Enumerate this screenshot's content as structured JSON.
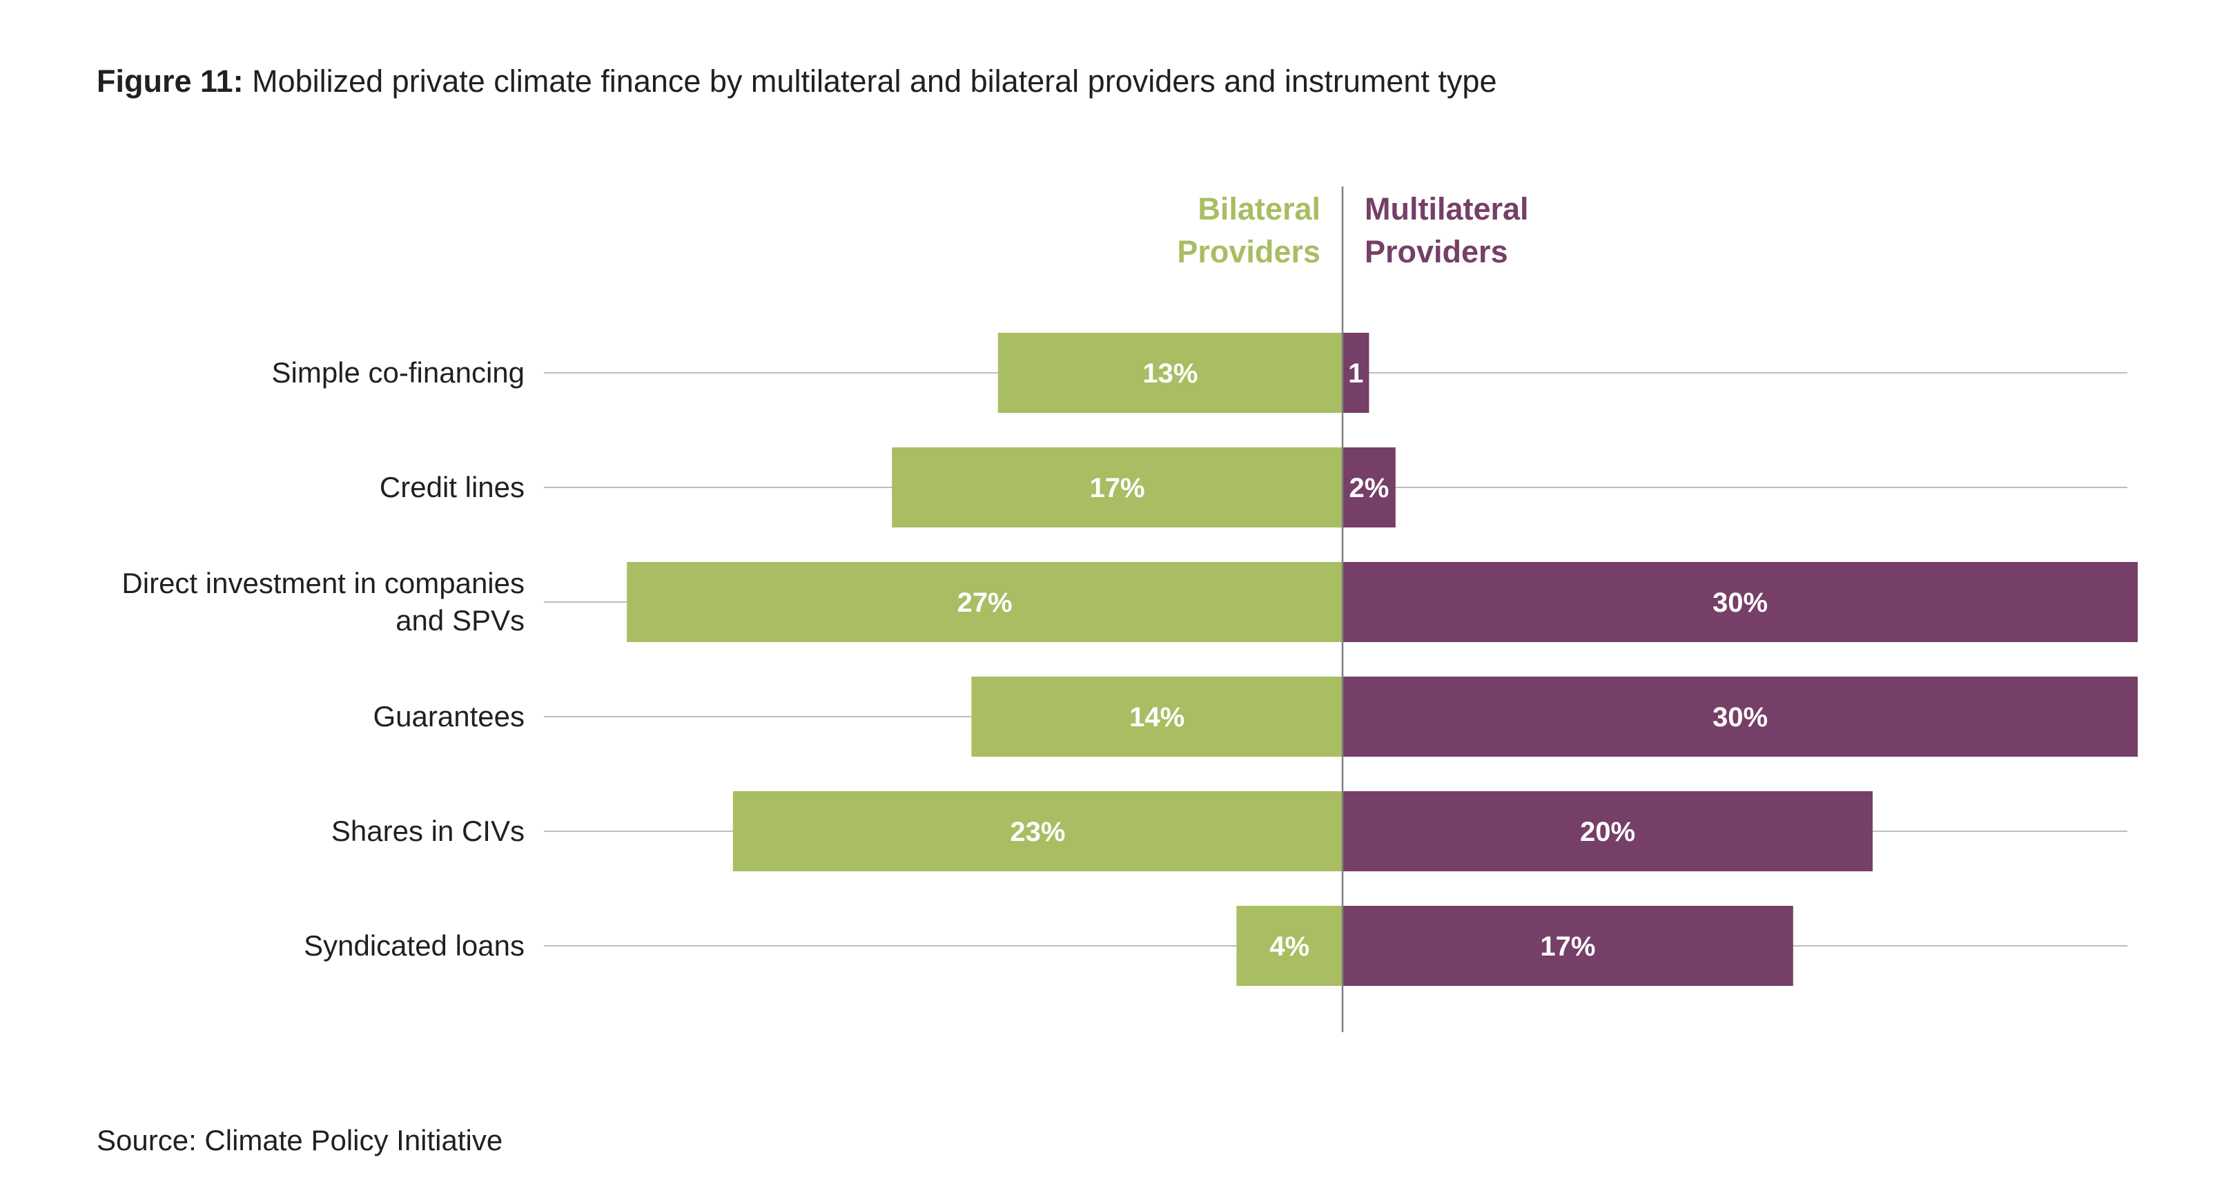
{
  "figure_label": "Figure 11:",
  "figure_title": "Mobilized private climate finance by multilateral and bilateral providers and instrument type",
  "source": "Source: Climate Policy Initiative",
  "chart_data": {
    "type": "bar",
    "orientation": "horizontal-diverging",
    "categories": [
      [
        "Simple co-financing"
      ],
      [
        "Credit lines"
      ],
      [
        "Direct investment in companies",
        "and SPVs"
      ],
      [
        "Guarantees"
      ],
      [
        "Shares in CIVs"
      ],
      [
        "Syndicated loans"
      ]
    ],
    "series": [
      {
        "name": [
          "Bilateral",
          "Providers"
        ],
        "side": "left",
        "color": "#a9bd62",
        "values": [
          13,
          17,
          27,
          14,
          23,
          4
        ],
        "labels": [
          "13%",
          "17%",
          "27%",
          "14%",
          "23%",
          "4%"
        ]
      },
      {
        "name": [
          "Multilateral",
          "Providers"
        ],
        "side": "right",
        "color": "#763f67",
        "values": [
          1,
          2,
          30,
          30,
          20,
          17
        ],
        "labels": [
          "1",
          "2%",
          "30%",
          "30%",
          "20%",
          "17%"
        ]
      }
    ],
    "unit": "%",
    "xlim": [
      0,
      30
    ],
    "grid": true,
    "gridline_color": "#bdbdbd",
    "axis_color": "#808080"
  }
}
